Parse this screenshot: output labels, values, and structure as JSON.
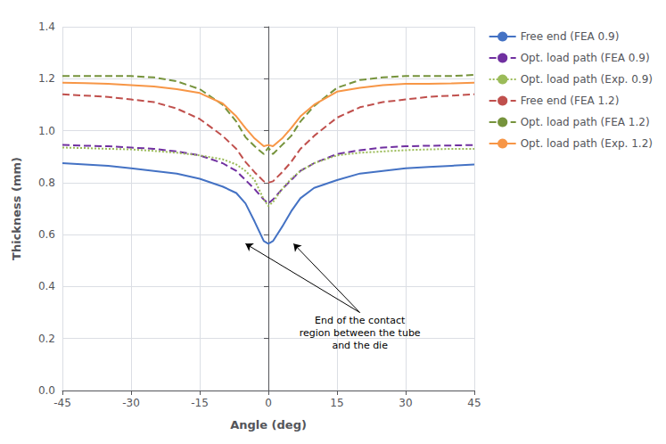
{
  "chart_data": {
    "type": "line",
    "xlabel": "Angle (deg)",
    "ylabel": "Thickness (mm)",
    "x": [
      -45,
      -40,
      -35,
      -30,
      -25,
      -20,
      -15,
      -10,
      -7,
      -5,
      -3,
      -1,
      0,
      1,
      3,
      5,
      7,
      10,
      15,
      20,
      25,
      30,
      35,
      40,
      45
    ],
    "series": [
      {
        "name": "Free end (FEA 0.9)",
        "color": "#4472C4",
        "line_style": "solid",
        "values": [
          0.875,
          0.87,
          0.865,
          0.855,
          0.845,
          0.835,
          0.815,
          0.785,
          0.76,
          0.72,
          0.65,
          0.575,
          0.565,
          0.575,
          0.63,
          0.69,
          0.74,
          0.78,
          0.81,
          0.835,
          0.845,
          0.855,
          0.86,
          0.865,
          0.87
        ]
      },
      {
        "name": "Opt. load path (FEA 0.9)",
        "color": "#7030A0",
        "line_style": "dashed",
        "values": [
          0.945,
          0.942,
          0.94,
          0.935,
          0.93,
          0.92,
          0.905,
          0.875,
          0.845,
          0.81,
          0.775,
          0.735,
          0.72,
          0.735,
          0.775,
          0.81,
          0.845,
          0.875,
          0.91,
          0.925,
          0.935,
          0.94,
          0.942,
          0.943,
          0.945
        ]
      },
      {
        "name": "Opt. load path (Exp. 0.9)",
        "color": "#9BBB59",
        "line_style": "dotted",
        "values": [
          0.935,
          0.933,
          0.93,
          0.928,
          0.922,
          0.915,
          0.905,
          0.89,
          0.87,
          0.845,
          0.81,
          0.735,
          0.71,
          0.725,
          0.775,
          0.815,
          0.845,
          0.875,
          0.905,
          0.915,
          0.92,
          0.925,
          0.928,
          0.93,
          0.93
        ]
      },
      {
        "name": "Free end (FEA 1.2)",
        "color": "#C0504D",
        "line_style": "dashed",
        "values": [
          1.14,
          1.135,
          1.13,
          1.12,
          1.11,
          1.085,
          1.045,
          0.98,
          0.93,
          0.88,
          0.84,
          0.805,
          0.8,
          0.805,
          0.84,
          0.88,
          0.93,
          0.98,
          1.05,
          1.09,
          1.11,
          1.12,
          1.13,
          1.135,
          1.14
        ]
      },
      {
        "name": "Opt. load path (FEA 1.2)",
        "color": "#76933C",
        "line_style": "dashed",
        "values": [
          1.21,
          1.21,
          1.21,
          1.21,
          1.205,
          1.19,
          1.16,
          1.1,
          1.035,
          0.975,
          0.94,
          0.91,
          0.935,
          0.91,
          0.945,
          0.98,
          1.035,
          1.095,
          1.165,
          1.195,
          1.205,
          1.21,
          1.21,
          1.21,
          1.215
        ]
      },
      {
        "name": "Opt. load path (Exp. 1.2)",
        "color": "#F79646",
        "line_style": "solid",
        "values": [
          1.185,
          1.183,
          1.18,
          1.175,
          1.17,
          1.16,
          1.145,
          1.105,
          1.055,
          1.01,
          0.97,
          0.94,
          0.945,
          0.94,
          0.97,
          1.01,
          1.055,
          1.1,
          1.15,
          1.165,
          1.175,
          1.18,
          1.18,
          1.182,
          1.185
        ]
      }
    ],
    "xlim": [
      -45,
      45
    ],
    "xticks": [
      -45,
      -30,
      -15,
      0,
      15,
      30,
      45
    ],
    "ylim": [
      0,
      1.4
    ],
    "yticks": [
      {
        "value": 0,
        "label": "0.0"
      },
      0.2,
      0.4,
      0.6,
      0.8,
      {
        "value": 1.0,
        "label": "1.0"
      },
      1.2,
      1.4
    ],
    "grid": true,
    "legend": "right",
    "annotations": [
      {
        "text": "End of the contact\nregion between the tube\nand the die",
        "xy": [
          20,
          0.3
        ],
        "arrows": [
          [
            -5.0,
            0.565
          ],
          [
            5.5,
            0.565
          ]
        ]
      }
    ]
  }
}
